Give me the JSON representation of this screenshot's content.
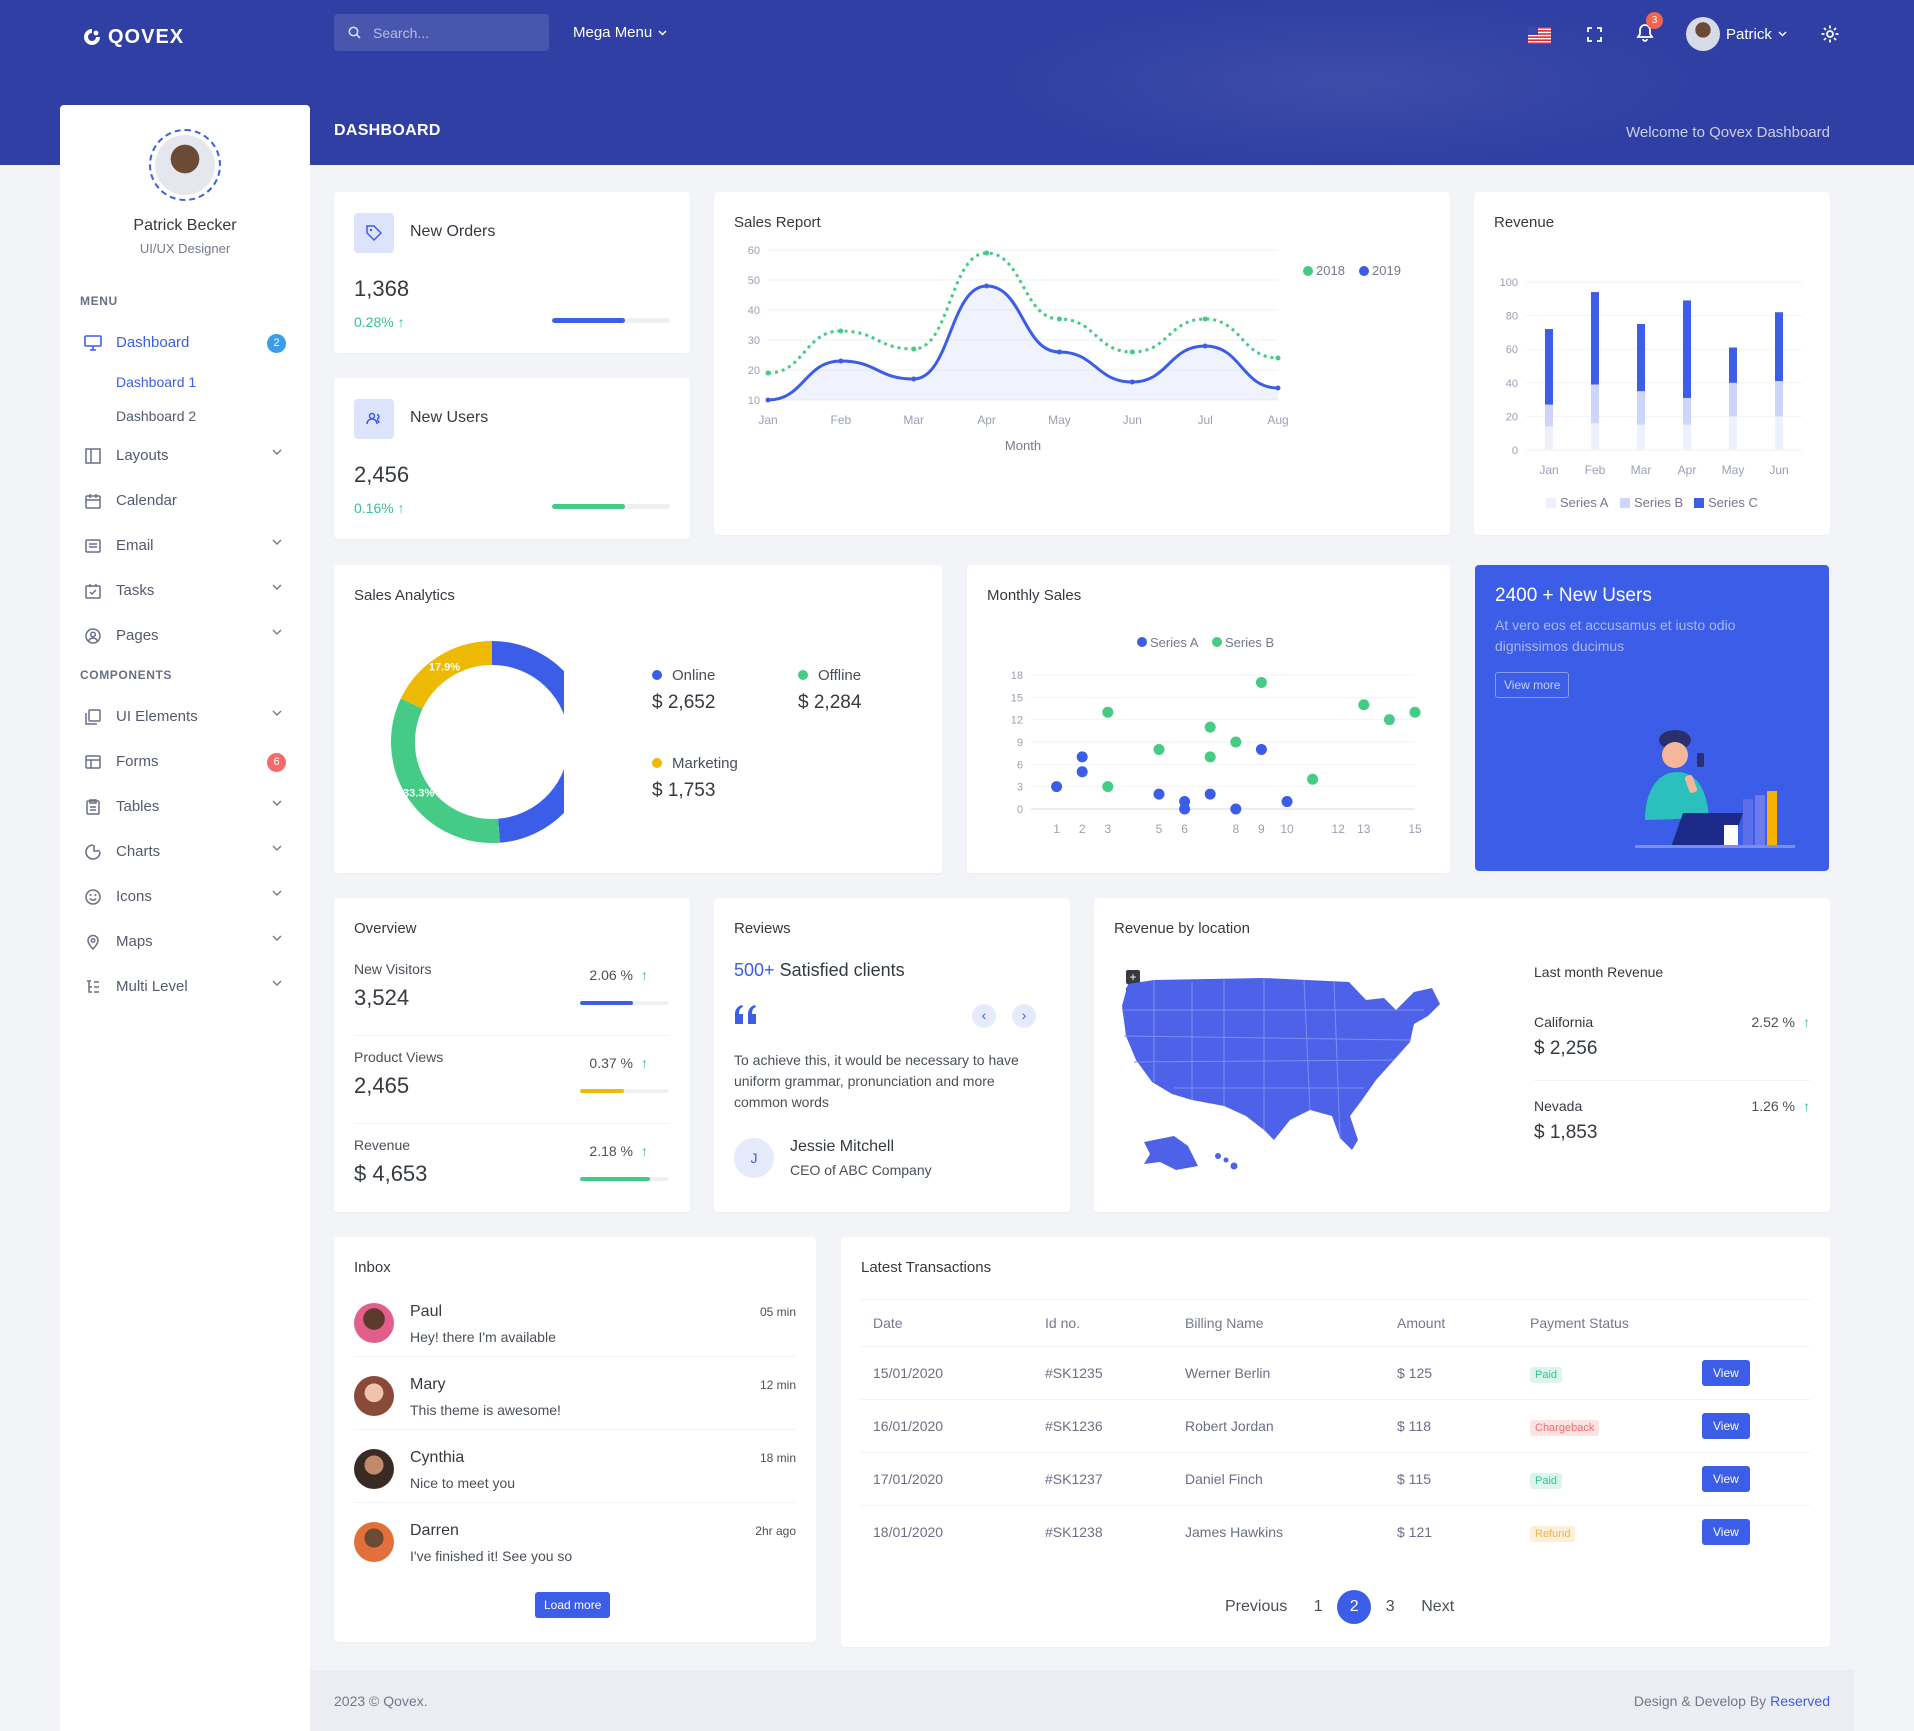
{
  "header": {
    "logo_text": "QOVEX",
    "search_placeholder": "Search...",
    "mega_menu": "Mega Menu",
    "notification_count": "3",
    "user_name": "Patrick",
    "page_title": "DASHBOARD",
    "welcome": "Welcome to Qovex Dashboard"
  },
  "sidebar": {
    "profile_name": "Patrick Becker",
    "profile_role": "UI/UX Designer",
    "menu_title": "MENU",
    "components_title": "COMPONENTS",
    "items": [
      {
        "label": "Dashboard",
        "icon": "monitor-icon",
        "badge": "2"
      },
      {
        "label": "Dashboard 1"
      },
      {
        "label": "Dashboard 2"
      },
      {
        "label": "Layouts",
        "icon": "layout-icon"
      },
      {
        "label": "Calendar",
        "icon": "calendar-icon"
      },
      {
        "label": "Email",
        "icon": "email-icon"
      },
      {
        "label": "Tasks",
        "icon": "tasks-icon"
      },
      {
        "label": "Pages",
        "icon": "user-circle-icon"
      },
      {
        "label": "UI Elements",
        "icon": "copy-icon"
      },
      {
        "label": "Forms",
        "icon": "form-icon",
        "badge": "6"
      },
      {
        "label": "Tables",
        "icon": "clipboard-icon"
      },
      {
        "label": "Charts",
        "icon": "chart-icon"
      },
      {
        "label": "Icons",
        "icon": "smile-icon"
      },
      {
        "label": "Maps",
        "icon": "map-pin-icon"
      },
      {
        "label": "Multi Level",
        "icon": "list-tree-icon"
      }
    ]
  },
  "kpis": [
    {
      "label": "New Orders",
      "value": "1,368",
      "change": "0.28%",
      "progress": 0.62,
      "color": "#3b5de7"
    },
    {
      "label": "New Users",
      "value": "2,456",
      "change": "0.16%",
      "progress": 0.62,
      "color": "#45cb85"
    }
  ],
  "sales_report": {
    "title": "Sales Report",
    "chart_data": {
      "type": "line",
      "x": [
        "Jan",
        "Feb",
        "Mar",
        "Apr",
        "May",
        "Jun",
        "Jul",
        "Aug"
      ],
      "xlabel": "Month",
      "ylim": [
        10,
        60
      ],
      "yticks": [
        10,
        20,
        30,
        40,
        50,
        60
      ],
      "legend": "top-right",
      "series": [
        {
          "name": "2018",
          "values": [
            19,
            33,
            27,
            59,
            37,
            26,
            37,
            24
          ],
          "color": "#45cb85"
        },
        {
          "name": "2019",
          "values": [
            10,
            23,
            17,
            48,
            26,
            16,
            28,
            14
          ],
          "color": "#3b5de7"
        }
      ]
    }
  },
  "revenue": {
    "title": "Revenue",
    "chart_data": {
      "type": "bar",
      "categories": [
        "Jan",
        "Feb",
        "Mar",
        "Apr",
        "May",
        "Jun"
      ],
      "ylim": [
        0,
        100
      ],
      "yticks": [
        0,
        20,
        40,
        60,
        80,
        100
      ],
      "legend": "bottom",
      "series": [
        {
          "name": "Series A",
          "values": [
            14,
            16,
            15,
            15,
            20,
            20
          ],
          "color": "#eef1fb"
        },
        {
          "name": "Series B",
          "values": [
            13,
            23,
            20,
            16,
            20,
            21
          ],
          "color": "#cdd5f8"
        },
        {
          "name": "Series C",
          "values": [
            45,
            55,
            40,
            58,
            21,
            41
          ],
          "color": "#3b5de7"
        }
      ]
    }
  },
  "sales_analytics": {
    "title": "Sales Analytics",
    "chart_data": {
      "type": "pie",
      "labels": [
        "Online",
        "Offline",
        "Marketing"
      ],
      "values": [
        48.7,
        33.3,
        17.9
      ],
      "value_labels": [
        "48.7%",
        "33.3%",
        "17.9%"
      ],
      "colors": [
        "#3b5de7",
        "#45cb85",
        "#eeb902"
      ]
    },
    "legend": [
      {
        "label": "Online",
        "value": "$ 2,652",
        "color": "#3b5de7"
      },
      {
        "label": "Offline",
        "value": "$ 2,284",
        "color": "#45cb85"
      },
      {
        "label": "Marketing",
        "value": "$ 1,753",
        "color": "#eeb902"
      }
    ]
  },
  "monthly_sales": {
    "title": "Monthly Sales",
    "chart_data": {
      "type": "scatter",
      "xlim": [
        0,
        15
      ],
      "ylim": [
        0,
        18
      ],
      "xticks": [
        1,
        2,
        3,
        5,
        6,
        8,
        9,
        10,
        12,
        13,
        15
      ],
      "yticks": [
        0,
        3,
        6,
        9,
        12,
        15,
        18
      ],
      "legend": "top",
      "series": [
        {
          "name": "Series A",
          "color": "#3b5de7",
          "points": [
            [
              1,
              3
            ],
            [
              2,
              7
            ],
            [
              2,
              5
            ],
            [
              5,
              2
            ],
            [
              6,
              1
            ],
            [
              6,
              0
            ],
            [
              7,
              2
            ],
            [
              8,
              0
            ],
            [
              9,
              8
            ],
            [
              10,
              1
            ]
          ]
        },
        {
          "name": "Series B",
          "color": "#45cb85",
          "points": [
            [
              3,
              13
            ],
            [
              3,
              3
            ],
            [
              5,
              8
            ],
            [
              7,
              11
            ],
            [
              7,
              7
            ],
            [
              8,
              9
            ],
            [
              9,
              17
            ],
            [
              11,
              4
            ],
            [
              13,
              14
            ],
            [
              14,
              12
            ],
            [
              15,
              13
            ]
          ]
        }
      ]
    }
  },
  "promo": {
    "title": "2400 + New Users",
    "text": "At vero eos et accusamus et iusto odio dignissimos ducimus",
    "button": "View more"
  },
  "overview": {
    "title": "Overview",
    "rows": [
      {
        "label": "New Visitors",
        "value": "3,524",
        "pct": "2.06 %",
        "progress": 0.6,
        "color": "#3b5de7"
      },
      {
        "label": "Product Views",
        "value": "2,465",
        "pct": "0.37 %",
        "progress": 0.5,
        "color": "#eeb902"
      },
      {
        "label": "Revenue",
        "value": "$ 4,653",
        "pct": "2.18 %",
        "progress": 0.8,
        "color": "#45cb85"
      }
    ]
  },
  "reviews": {
    "title": "Reviews",
    "count": "500+",
    "headline": "Satisfied clients",
    "quote": "To achieve this, it would be necessary to have uniform grammar, pronunciation and more common words",
    "author_initial": "J",
    "author": "Jessie Mitchell",
    "author_role": "CEO of ABC Company"
  },
  "location": {
    "title": "Revenue by location",
    "subtitle": "Last month Revenue",
    "rows": [
      {
        "state": "California",
        "value": "$ 2,256",
        "pct": "2.52 %"
      },
      {
        "state": "Nevada",
        "value": "$ 1,853",
        "pct": "1.26 %"
      }
    ]
  },
  "inbox": {
    "title": "Inbox",
    "items": [
      {
        "name": "Paul",
        "msg": "Hey! there I'm available",
        "time": "05 min"
      },
      {
        "name": "Mary",
        "msg": "This theme is awesome!",
        "time": "12 min"
      },
      {
        "name": "Cynthia",
        "msg": "Nice to meet you",
        "time": "18 min"
      },
      {
        "name": "Darren",
        "msg": "I've finished it! See you so",
        "time": "2hr ago"
      }
    ],
    "button": "Load more"
  },
  "transactions": {
    "title": "Latest Transactions",
    "columns": [
      "Date",
      "Id no.",
      "Billing Name",
      "Amount",
      "Payment Status"
    ],
    "rows": [
      {
        "date": "15/01/2020",
        "id": "#SK1235",
        "name": "Werner Berlin",
        "amount": "$ 125",
        "status": "Paid",
        "status_color": "#34c38f",
        "status_bg": "#dcf5ec"
      },
      {
        "date": "16/01/2020",
        "id": "#SK1236",
        "name": "Robert Jordan",
        "amount": "$ 118",
        "status": "Chargeback",
        "status_color": "#f46a6a",
        "status_bg": "#fde4e4"
      },
      {
        "date": "17/01/2020",
        "id": "#SK1237",
        "name": "Daniel Finch",
        "amount": "$ 115",
        "status": "Paid",
        "status_color": "#34c38f",
        "status_bg": "#dcf5ec"
      },
      {
        "date": "18/01/2020",
        "id": "#SK1238",
        "name": "James Hawkins",
        "amount": "$ 121",
        "status": "Refund",
        "status_color": "#f1b44c",
        "status_bg": "#fcf0db"
      }
    ],
    "view_label": "View",
    "pagination": {
      "prev": "Previous",
      "pages": [
        "1",
        "2",
        "3"
      ],
      "current": "2",
      "next": "Next"
    }
  },
  "footer": {
    "left": "2023 © Qovex.",
    "right": "Design & Develop By",
    "right_link": "Reserved"
  }
}
